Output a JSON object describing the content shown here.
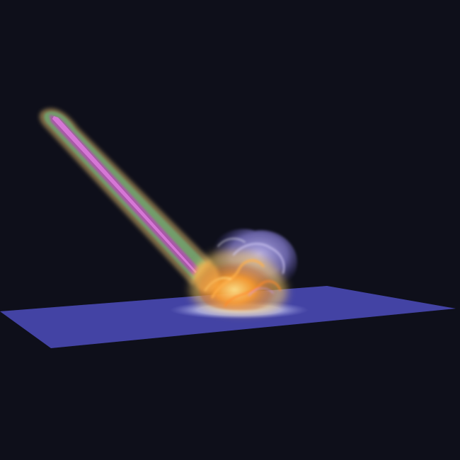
{
  "scene": {
    "background_color": "#0e0f1a",
    "ground_plane_color": "#4b4bb0",
    "impact_disc_color": "#b7b9e8",
    "jet_outer_color": "#d8b56a",
    "jet_mid_color": "#6fae78",
    "jet_core_color": "#b04fb0",
    "burst_hot_color": "#ff9a2a",
    "burst_glow_color": "#ffd36a",
    "burst_cool_color": "#8f86e0"
  }
}
